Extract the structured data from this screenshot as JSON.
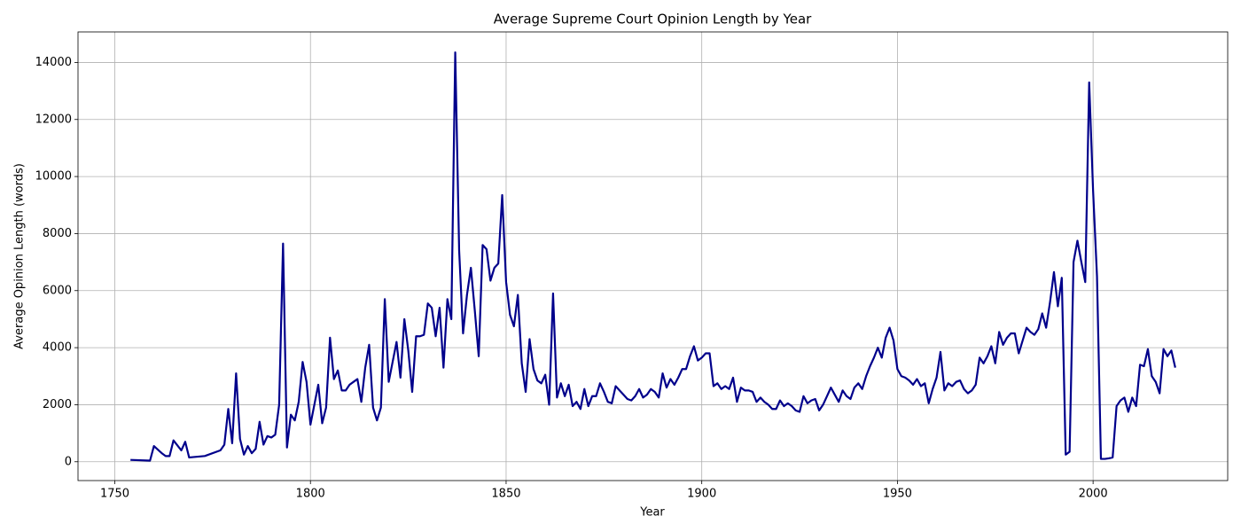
{
  "chart_data": {
    "type": "line",
    "title": "Average Supreme Court Opinion Length by Year",
    "xlabel": "Year",
    "ylabel": "Average Opinion Length (words)",
    "color": "#00008b",
    "grid": true,
    "xlim": [
      1740.6,
      2034.4
    ],
    "ylim": [
      -660,
      15070
    ],
    "xticks": [
      1750,
      1800,
      1850,
      1900,
      1950,
      2000
    ],
    "yticks": [
      0,
      2000,
      4000,
      6000,
      8000,
      10000,
      12000,
      14000
    ],
    "x": [
      1754,
      1759,
      1760,
      1762,
      1763,
      1764,
      1765,
      1767,
      1768,
      1769,
      1773,
      1777,
      1778,
      1779,
      1780,
      1781,
      1782,
      1783,
      1784,
      1785,
      1786,
      1787,
      1788,
      1789,
      1790,
      1791,
      1792,
      1793,
      1794,
      1795,
      1796,
      1797,
      1798,
      1799,
      1800,
      1801,
      1802,
      1803,
      1804,
      1805,
      1806,
      1807,
      1808,
      1809,
      1810,
      1811,
      1812,
      1813,
      1814,
      1815,
      1816,
      1817,
      1818,
      1819,
      1820,
      1821,
      1822,
      1823,
      1824,
      1825,
      1826,
      1827,
      1828,
      1829,
      1830,
      1831,
      1832,
      1833,
      1834,
      1835,
      1836,
      1837,
      1838,
      1839,
      1840,
      1841,
      1842,
      1843,
      1844,
      1845,
      1846,
      1847,
      1848,
      1849,
      1850,
      1851,
      1852,
      1853,
      1854,
      1855,
      1856,
      1857,
      1858,
      1859,
      1860,
      1861,
      1862,
      1863,
      1864,
      1865,
      1866,
      1867,
      1868,
      1869,
      1870,
      1871,
      1872,
      1873,
      1874,
      1875,
      1876,
      1877,
      1878,
      1879,
      1880,
      1881,
      1882,
      1883,
      1884,
      1885,
      1886,
      1887,
      1888,
      1889,
      1890,
      1891,
      1892,
      1893,
      1894,
      1895,
      1896,
      1897,
      1898,
      1899,
      1900,
      1901,
      1902,
      1903,
      1904,
      1905,
      1906,
      1907,
      1908,
      1909,
      1910,
      1911,
      1912,
      1913,
      1914,
      1915,
      1916,
      1917,
      1918,
      1919,
      1920,
      1921,
      1922,
      1923,
      1924,
      1925,
      1926,
      1927,
      1928,
      1929,
      1930,
      1931,
      1932,
      1933,
      1934,
      1935,
      1936,
      1937,
      1938,
      1939,
      1940,
      1941,
      1942,
      1943,
      1944,
      1945,
      1946,
      1947,
      1948,
      1949,
      1950,
      1951,
      1952,
      1953,
      1954,
      1955,
      1956,
      1957,
      1958,
      1959,
      1960,
      1961,
      1962,
      1963,
      1964,
      1965,
      1966,
      1967,
      1968,
      1969,
      1970,
      1971,
      1972,
      1973,
      1974,
      1975,
      1976,
      1977,
      1978,
      1979,
      1980,
      1981,
      1982,
      1983,
      1984,
      1985,
      1986,
      1987,
      1988,
      1989,
      1990,
      1991,
      1992,
      1993,
      1994,
      1995,
      1996,
      1997,
      1998,
      1999,
      2000,
      2001,
      2002,
      2003,
      2004,
      2005,
      2006,
      2007,
      2008,
      2009,
      2010,
      2011,
      2012,
      2013,
      2014,
      2015,
      2016,
      2017,
      2018,
      2019,
      2020,
      2021
    ],
    "values": [
      65,
      40,
      550,
      300,
      200,
      200,
      750,
      400,
      700,
      150,
      200,
      400,
      600,
      1850,
      650,
      3100,
      800,
      250,
      550,
      300,
      450,
      1400,
      600,
      900,
      850,
      950,
      2000,
      7650,
      500,
      1650,
      1450,
      2100,
      3500,
      2800,
      1300,
      2000,
      2700,
      1350,
      1900,
      4350,
      2900,
      3200,
      2500,
      2500,
      2700,
      2800,
      2900,
      2100,
      3300,
      4100,
      1900,
      1450,
      1900,
      5700,
      2800,
      3500,
      4200,
      2950,
      5000,
      3900,
      2450,
      4400,
      4400,
      4450,
      5550,
      5400,
      4400,
      5400,
      3300,
      5700,
      5000,
      14350,
      7400,
      4500,
      5850,
      6800,
      5300,
      3700,
      7600,
      7450,
      6350,
      6800,
      6950,
      9350,
      6300,
      5150,
      4750,
      5850,
      3450,
      2450,
      4300,
      3250,
      2850,
      2750,
      3050,
      2000,
      5900,
      2250,
      2750,
      2300,
      2700,
      1950,
      2100,
      1850,
      2550,
      1950,
      2300,
      2300,
      2750,
      2450,
      2100,
      2050,
      2650,
      2500,
      2350,
      2200,
      2150,
      2300,
      2550,
      2250,
      2350,
      2550,
      2450,
      2250,
      3100,
      2600,
      2900,
      2700,
      2950,
      3250,
      3250,
      3700,
      4050,
      3550,
      3650,
      3800,
      3800,
      2650,
      2750,
      2550,
      2650,
      2550,
      2950,
      2100,
      2600,
      2500,
      2500,
      2450,
      2100,
      2250,
      2100,
      2000,
      1850,
      1850,
      2150,
      1950,
      2050,
      1950,
      1800,
      1750,
      2300,
      2050,
      2150,
      2200,
      1800,
      2000,
      2300,
      2600,
      2350,
      2100,
      2500,
      2300,
      2200,
      2600,
      2750,
      2550,
      3000,
      3350,
      3650,
      4000,
      3650,
      4350,
      4700,
      4250,
      3250,
      3000,
      2950,
      2850,
      2700,
      2900,
      2650,
      2750,
      2050,
      2550,
      2950,
      3850,
      2500,
      2750,
      2650,
      2800,
      2850,
      2550,
      2400,
      2500,
      2700,
      3650,
      3450,
      3700,
      4050,
      3450,
      4550,
      4100,
      4350,
      4500,
      4500,
      3800,
      4250,
      4700,
      4550,
      4450,
      4650,
      5200,
      4700,
      5600,
      6650,
      5450,
      6450,
      250,
      350,
      7000,
      7750,
      7000,
      6300,
      13300,
      9500,
      6500,
      100,
      100,
      120,
      150,
      1950,
      2150,
      2250,
      1750,
      2250,
      1950,
      3400,
      3350,
      3950,
      3000,
      2800,
      2400,
      3950,
      3700,
      3900,
      3300
    ]
  }
}
